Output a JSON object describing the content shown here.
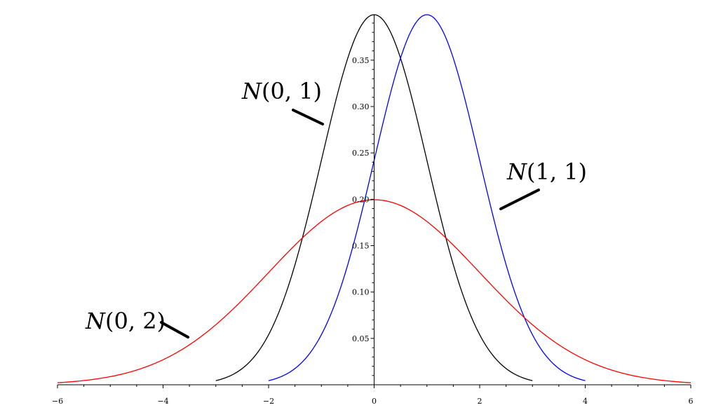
{
  "chart_data": {
    "type": "line",
    "title": "",
    "xlabel": "",
    "ylabel": "",
    "xlim": [
      -6,
      6
    ],
    "ylim": [
      0,
      0.399
    ],
    "grid": false,
    "x_ticks": [
      -6,
      -4,
      -2,
      0,
      2,
      4,
      6
    ],
    "x_tick_labels": [
      "−6",
      "−4",
      "−2",
      "0",
      "2",
      "4",
      "6"
    ],
    "y_ticks": [
      0.05,
      0.1,
      0.15,
      0.2,
      0.25,
      0.3,
      0.35
    ],
    "y_tick_labels": [
      "0.05",
      "0.10",
      "0.15",
      "0.20",
      "0.25",
      "0.30",
      "0.35"
    ],
    "series": [
      {
        "name": "N(0,1)",
        "name_prefix": "N",
        "name_args": "(0, 1)",
        "color": "#000000",
        "x": [
          -3.0,
          -2.5,
          -2.0,
          -1.5,
          -1.0,
          -0.5,
          0.0,
          0.5,
          1.0,
          1.5,
          2.0,
          2.5,
          3.0
        ],
        "y": [
          0.0044,
          0.0175,
          0.054,
          0.1295,
          0.242,
          0.352,
          0.399,
          0.352,
          0.242,
          0.1295,
          0.054,
          0.0175,
          0.0044
        ]
      },
      {
        "name": "N(1,1)",
        "name_prefix": "N",
        "name_args": "(1, 1)",
        "color": "#0000ff",
        "x": [
          -2.0,
          -1.5,
          -1.0,
          -0.5,
          0.0,
          0.5,
          1.0,
          1.5,
          2.0,
          2.5,
          3.0,
          3.5,
          4.0
        ],
        "y": [
          0.0044,
          0.0175,
          0.054,
          0.1295,
          0.242,
          0.352,
          0.399,
          0.352,
          0.242,
          0.1295,
          0.054,
          0.0175,
          0.0044
        ]
      },
      {
        "name": "N(0,2)",
        "name_prefix": "N",
        "name_args": "(0, 2)",
        "color": "#ff0000",
        "x": [
          -6.0,
          -5.0,
          -4.0,
          -3.0,
          -2.0,
          -1.0,
          0.0,
          1.0,
          2.0,
          3.0,
          4.0,
          5.0,
          6.0
        ],
        "y": [
          0.0022,
          0.0088,
          0.027,
          0.0648,
          0.121,
          0.176,
          0.1995,
          0.176,
          0.121,
          0.0648,
          0.027,
          0.0088,
          0.0022
        ]
      }
    ]
  }
}
